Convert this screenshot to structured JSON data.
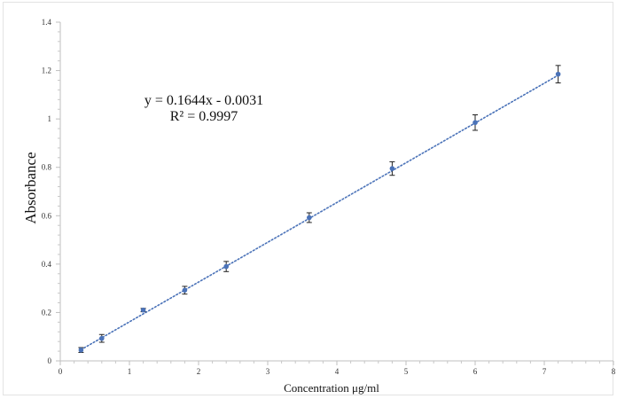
{
  "chart_data": {
    "type": "scatter",
    "xlabel": "Concentration μg/ml",
    "ylabel": "Absorbance",
    "xlim": [
      0,
      8
    ],
    "ylim": [
      0,
      1.4
    ],
    "x_ticks": [
      "0",
      "1",
      "2",
      "3",
      "4",
      "5",
      "6",
      "7",
      "8"
    ],
    "y_ticks": [
      "0",
      "0.2",
      "0.4",
      "0.6",
      "0.8",
      "1",
      "1.2",
      "1.4"
    ],
    "grid": false,
    "series": [
      {
        "x": [
          0.3,
          0.6,
          1.2,
          1.8,
          2.4,
          3.6,
          4.8,
          6.0,
          7.2
        ],
        "y": [
          0.045,
          0.093,
          0.21,
          0.292,
          0.39,
          0.592,
          0.795,
          0.985,
          1.185
        ],
        "err": [
          0.01,
          0.016,
          0.007,
          0.016,
          0.021,
          0.02,
          0.028,
          0.032,
          0.036
        ],
        "color": "#4a72b8"
      }
    ],
    "trendline": {
      "slope": 0.1644,
      "intercept": -0.0031,
      "x_range": [
        0.3,
        7.2
      ],
      "style": "dotted",
      "color": "#4a72b8"
    },
    "annotations": {
      "equation": "y = 0.1644x - 0.0031",
      "r_squared": "R² = 0.9997"
    }
  }
}
